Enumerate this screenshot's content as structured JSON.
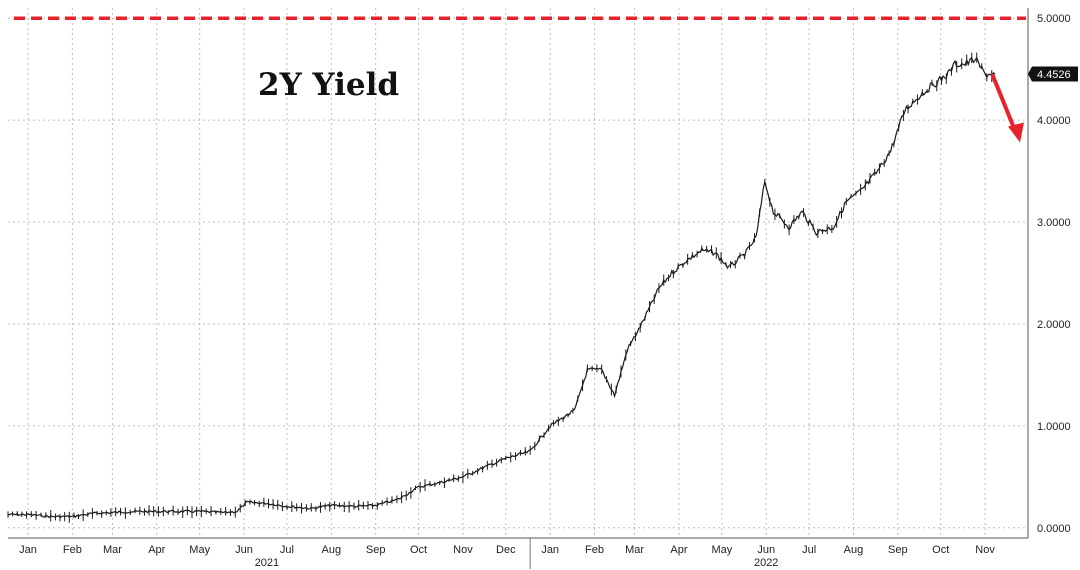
{
  "chart_data": {
    "type": "line",
    "title": "2Y Yield",
    "last_value_label": "4.4526",
    "ylim": [
      -0.1,
      5.1
    ],
    "yticks": [
      0.0,
      1.0,
      2.0,
      3.0,
      4.0,
      5.0
    ],
    "ytick_labels": [
      "0.0000",
      "1.0000",
      "2.0000",
      "3.0000",
      "4.0000",
      "5.0000"
    ],
    "x_range": [
      "2021-01-01",
      "2022-12-15"
    ],
    "month_ticks": [
      {
        "date": "2021-01-15",
        "label": "Jan"
      },
      {
        "date": "2021-02-15",
        "label": "Feb"
      },
      {
        "date": "2021-03-15",
        "label": "Mar"
      },
      {
        "date": "2021-04-15",
        "label": "Apr"
      },
      {
        "date": "2021-05-15",
        "label": "May"
      },
      {
        "date": "2021-06-15",
        "label": "Jun"
      },
      {
        "date": "2021-07-15",
        "label": "Jul"
      },
      {
        "date": "2021-08-15",
        "label": "Aug"
      },
      {
        "date": "2021-09-15",
        "label": "Sep"
      },
      {
        "date": "2021-10-15",
        "label": "Oct"
      },
      {
        "date": "2021-11-15",
        "label": "Nov"
      },
      {
        "date": "2021-12-15",
        "label": "Dec"
      },
      {
        "date": "2022-01-15",
        "label": "Jan"
      },
      {
        "date": "2022-02-15",
        "label": "Feb"
      },
      {
        "date": "2022-03-15",
        "label": "Mar"
      },
      {
        "date": "2022-04-15",
        "label": "Apr"
      },
      {
        "date": "2022-05-15",
        "label": "May"
      },
      {
        "date": "2022-06-15",
        "label": "Jun"
      },
      {
        "date": "2022-07-15",
        "label": "Jul"
      },
      {
        "date": "2022-08-15",
        "label": "Aug"
      },
      {
        "date": "2022-09-15",
        "label": "Sep"
      },
      {
        "date": "2022-10-15",
        "label": "Oct"
      },
      {
        "date": "2022-11-15",
        "label": "Nov"
      }
    ],
    "year_labels": [
      {
        "date": "2021-07-01",
        "label": "2021"
      },
      {
        "date": "2022-06-15",
        "label": "2022"
      }
    ],
    "reference_line": {
      "y": 5.0,
      "color": "#e8222a",
      "style": "dashed"
    },
    "annotation_arrow": {
      "color": "#e8222a",
      "from": [
        "2022-11-20",
        4.45
      ],
      "to": [
        "2022-12-08",
        3.8
      ]
    },
    "grid": true,
    "colors": {
      "series": "#1a1a1a",
      "reference": "#e8222a",
      "arrow": "#e8222a",
      "grid": "#bdbdbd",
      "last_label_bg": "#111111"
    },
    "series": [
      {
        "x": [
          "2021-01-01",
          "2021-01-15",
          "2021-02-01",
          "2021-02-15",
          "2021-03-01",
          "2021-03-15",
          "2021-04-01",
          "2021-04-15",
          "2021-05-01",
          "2021-05-15",
          "2021-06-01",
          "2021-06-10",
          "2021-06-17",
          "2021-07-01",
          "2021-07-15",
          "2021-08-01",
          "2021-08-15",
          "2021-09-01",
          "2021-09-15",
          "2021-10-01",
          "2021-10-15",
          "2021-11-01",
          "2021-11-15",
          "2021-12-01",
          "2021-12-15",
          "2022-01-01",
          "2022-01-15",
          "2022-02-01",
          "2022-02-10",
          "2022-02-20",
          "2022-03-01",
          "2022-03-10",
          "2022-03-20",
          "2022-04-01",
          "2022-04-10",
          "2022-04-20",
          "2022-05-01",
          "2022-05-10",
          "2022-05-20",
          "2022-06-01",
          "2022-06-08",
          "2022-06-14",
          "2022-06-20",
          "2022-07-01",
          "2022-07-10",
          "2022-07-20",
          "2022-08-01",
          "2022-08-10",
          "2022-08-20",
          "2022-09-01",
          "2022-09-10",
          "2022-09-20",
          "2022-10-01",
          "2022-10-10",
          "2022-10-20",
          "2022-10-25",
          "2022-11-01",
          "2022-11-08",
          "2022-11-15",
          "2022-11-22"
        ],
        "y": [
          0.13,
          0.13,
          0.11,
          0.11,
          0.14,
          0.15,
          0.16,
          0.16,
          0.16,
          0.16,
          0.15,
          0.16,
          0.25,
          0.24,
          0.21,
          0.19,
          0.22,
          0.21,
          0.22,
          0.28,
          0.4,
          0.45,
          0.5,
          0.6,
          0.68,
          0.75,
          1.0,
          1.15,
          1.55,
          1.55,
          1.3,
          1.75,
          2.0,
          2.35,
          2.5,
          2.62,
          2.72,
          2.7,
          2.55,
          2.7,
          2.85,
          3.4,
          3.1,
          2.95,
          3.1,
          2.9,
          2.95,
          3.2,
          3.3,
          3.5,
          3.7,
          4.1,
          4.25,
          4.35,
          4.45,
          4.55,
          4.55,
          4.6,
          4.45,
          4.4526
        ]
      }
    ]
  }
}
